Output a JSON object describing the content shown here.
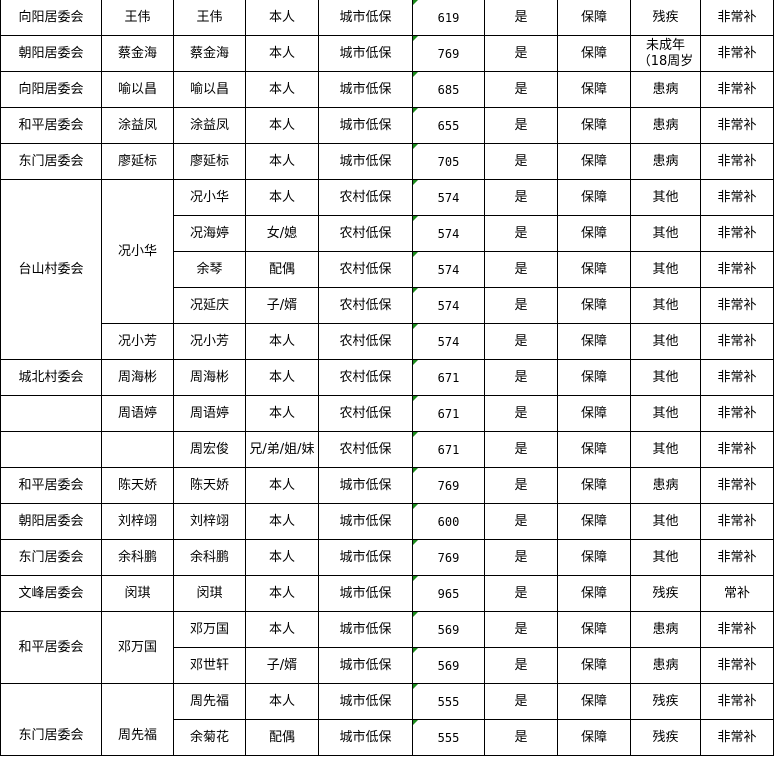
{
  "sheet": {
    "marker_color": "#1a8a1a",
    "rows": [
      [
        "向阳居委会",
        "王伟",
        "王伟",
        "本人",
        "城市低保",
        "619",
        "是",
        "保障",
        "残疾",
        "非常补"
      ],
      [
        "朝阳居委会",
        "蔡金海",
        "蔡金海",
        "本人",
        "城市低保",
        "769",
        "是",
        "保障",
        "未成年（18周岁",
        "非常补"
      ],
      [
        "向阳居委会",
        "喻以昌",
        "喻以昌",
        "本人",
        "城市低保",
        "685",
        "是",
        "保障",
        "患病",
        "非常补"
      ],
      [
        "和平居委会",
        "涂益凤",
        "涂益凤",
        "本人",
        "城市低保",
        "655",
        "是",
        "保障",
        "患病",
        "非常补"
      ],
      [
        "东门居委会",
        "廖延标",
        "廖延标",
        "本人",
        "城市低保",
        "705",
        "是",
        "保障",
        "患病",
        "非常补"
      ],
      [
        "台山村委会",
        "况小华",
        "况小华",
        "本人",
        "农村低保",
        "574",
        "是",
        "保障",
        "其他",
        "非常补"
      ],
      [
        null,
        null,
        "况海婷",
        "女/媳",
        "农村低保",
        "574",
        "是",
        "保障",
        "其他",
        "非常补"
      ],
      [
        null,
        null,
        "余琴",
        "配偶",
        "农村低保",
        "574",
        "是",
        "保障",
        "其他",
        "非常补"
      ],
      [
        null,
        null,
        "况延庆",
        "子/婿",
        "农村低保",
        "574",
        "是",
        "保障",
        "其他",
        "非常补"
      ],
      [
        null,
        "况小芳",
        "况小芳",
        "本人",
        "农村低保",
        "574",
        "是",
        "保障",
        "其他",
        "非常补"
      ],
      [
        "城北村委会",
        "周海彬",
        "周海彬",
        "本人",
        "农村低保",
        "671",
        "是",
        "保障",
        "其他",
        "非常补"
      ],
      [
        "",
        "周语婷",
        "周语婷",
        "本人",
        "农村低保",
        "671",
        "是",
        "保障",
        "其他",
        "非常补"
      ],
      [
        "",
        "",
        "周宏俊",
        "兄/弟/姐/妹",
        "农村低保",
        "671",
        "是",
        "保障",
        "其他",
        "非常补"
      ],
      [
        "和平居委会",
        "陈天娇",
        "陈天娇",
        "本人",
        "城市低保",
        "769",
        "是",
        "保障",
        "患病",
        "非常补"
      ],
      [
        "朝阳居委会",
        "刘梓翊",
        "刘梓翊",
        "本人",
        "城市低保",
        "600",
        "是",
        "保障",
        "其他",
        "非常补"
      ],
      [
        "东门居委会",
        "余科鹏",
        "余科鹏",
        "本人",
        "城市低保",
        "769",
        "是",
        "保障",
        "其他",
        "非常补"
      ],
      [
        "文峰居委会",
        "闵琪",
        "闵琪",
        "本人",
        "城市低保",
        "965",
        "是",
        "保障",
        "残疾",
        "常补"
      ],
      [
        "和平居委会",
        "邓万国",
        "邓万国",
        "本人",
        "城市低保",
        "569",
        "是",
        "保障",
        "患病",
        "非常补"
      ],
      [
        null,
        null,
        "邓世轩",
        "子/婿",
        "城市低保",
        "569",
        "是",
        "保障",
        "患病",
        "非常补"
      ],
      [
        "东门居委会",
        "周先福",
        "周先福",
        "本人",
        "城市低保",
        "555",
        "是",
        "保障",
        "残疾",
        "非常补"
      ],
      [
        null,
        null,
        "余菊花",
        "配偶",
        "城市低保",
        "555",
        "是",
        "保障",
        "残疾",
        "非常补"
      ]
    ]
  }
}
